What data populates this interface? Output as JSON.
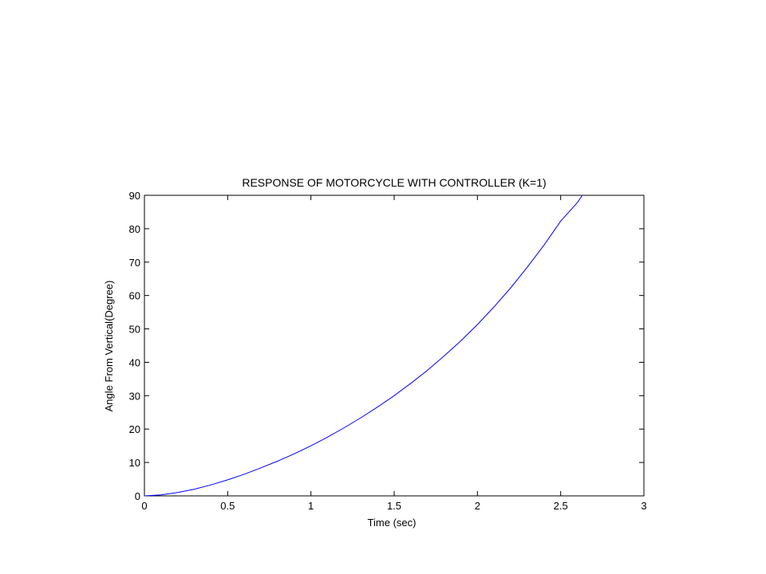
{
  "chart_data": {
    "type": "line",
    "title": "RESPONSE OF MOTORCYCLE WITH CONTROLLER (K=1)",
    "xlabel": "Time (sec)",
    "ylabel": "Angle From Vertical(Degree)",
    "xlim": [
      0,
      3
    ],
    "ylim": [
      0,
      90
    ],
    "xticks": [
      0,
      0.5,
      1,
      1.5,
      2,
      2.5,
      3
    ],
    "xtick_labels": [
      "0",
      "0.5",
      "1",
      "1.5",
      "2",
      "2.5",
      "3"
    ],
    "yticks": [
      0,
      10,
      20,
      30,
      40,
      50,
      60,
      70,
      80,
      90
    ],
    "ytick_labels": [
      "0",
      "10",
      "20",
      "30",
      "40",
      "50",
      "60",
      "70",
      "80",
      "90"
    ],
    "grid": false,
    "series": [
      {
        "color": "#0000ff",
        "x": [
          0,
          0.1,
          0.2,
          0.3,
          0.4,
          0.5,
          0.6,
          0.7,
          0.8,
          0.9,
          1.0,
          1.1,
          1.2,
          1.3,
          1.4,
          1.5,
          1.6,
          1.7,
          1.8,
          1.9,
          2.0,
          2.1,
          2.2,
          2.3,
          2.4,
          2.5,
          2.6,
          2.63
        ],
        "y": [
          0,
          0.3,
          1.0,
          2.0,
          3.3,
          4.8,
          6.5,
          8.4,
          10.4,
          12.6,
          15.0,
          17.6,
          20.4,
          23.4,
          26.6,
          30.0,
          33.7,
          37.6,
          41.9,
          46.4,
          51.3,
          56.6,
          62.3,
          68.5,
          75.1,
          82.3,
          87.8,
          90.0
        ]
      }
    ]
  }
}
